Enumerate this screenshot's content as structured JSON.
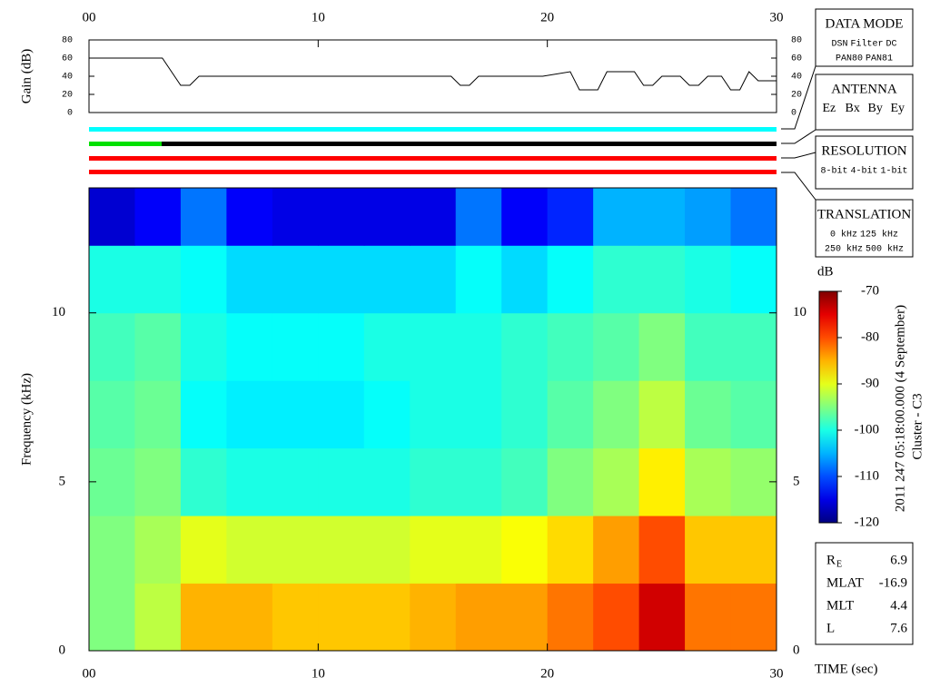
{
  "chart_data": [
    {
      "type": "line",
      "y_label": "Gain (dB)",
      "color": "#000000",
      "x": [
        0,
        3.2,
        3.6,
        4.0,
        4.4,
        4.8,
        15.8,
        16.2,
        16.6,
        17.0,
        19.8,
        21.0,
        21.4,
        22.2,
        22.6,
        23.8,
        24.2,
        24.6,
        25.0,
        25.8,
        26.2,
        26.6,
        27.0,
        27.6,
        28.0,
        28.4,
        28.8,
        29.2,
        30
      ],
      "values": [
        60,
        60,
        45,
        30,
        30,
        40,
        40,
        30,
        30,
        40,
        40,
        45,
        25,
        25,
        45,
        45,
        30,
        30,
        40,
        40,
        30,
        30,
        40,
        40,
        25,
        25,
        45,
        35,
        35
      ],
      "xlim": [
        0,
        30
      ],
      "xticks": [
        {
          "value": 0,
          "label": "00"
        },
        10,
        20,
        30
      ],
      "ylim": [
        0,
        80
      ],
      "yticks": [
        0,
        20,
        40,
        60,
        80
      ]
    },
    {
      "type": "heatmap",
      "x_label": "TIME (sec)",
      "y_label": "Frequency (kHz)",
      "x_bins": [
        0,
        2,
        4,
        6,
        8,
        10,
        12,
        14,
        16,
        18,
        20,
        22,
        24,
        26,
        28,
        30
      ],
      "y_bins": [
        0,
        2,
        4,
        6,
        8,
        10,
        12,
        13.7
      ],
      "values": [
        [
          -95,
          -92,
          -85,
          -85,
          -86,
          -86,
          -86,
          -85,
          -84,
          -84,
          -82,
          -80,
          -74,
          -82,
          -82
        ],
        [
          -95,
          -93,
          -90,
          -91,
          -91,
          -91,
          -91,
          -90,
          -90,
          -89,
          -87,
          -84,
          -80,
          -86,
          -86
        ],
        [
          -96,
          -95,
          -99,
          -100,
          -100,
          -100,
          -100,
          -99,
          -99,
          -98,
          -95,
          -93,
          -88,
          -93,
          -94
        ],
        [
          -97,
          -96,
          -101,
          -102,
          -102,
          -102,
          -101,
          -100,
          -100,
          -99,
          -97,
          -95,
          -92,
          -96,
          -97
        ],
        [
          -98,
          -97,
          -100,
          -101,
          -101,
          -101,
          -100,
          -100,
          -100,
          -99,
          -98,
          -97,
          -95,
          -98,
          -98
        ],
        [
          -100,
          -100,
          -101,
          -103,
          -103,
          -103,
          -103,
          -103,
          -101,
          -103,
          -101,
          -99,
          -99,
          -100,
          -101
        ],
        [
          -116,
          -114,
          -108,
          -114,
          -115,
          -115,
          -115,
          -115,
          -108,
          -114,
          -112,
          -105,
          -105,
          -106,
          -108
        ]
      ],
      "xlim": [
        0,
        30
      ],
      "xticks": [
        {
          "value": 0,
          "label": "00"
        },
        10,
        20,
        30
      ],
      "ylim": [
        0,
        13.7
      ],
      "yticks": [
        0,
        5,
        10
      ],
      "colorbar_label": "dB",
      "zlim": [
        -120,
        -70
      ],
      "zticks": [
        -70,
        -80,
        -90,
        -100,
        -110,
        -120
      ],
      "colormap": "jet"
    }
  ],
  "side_text": [
    "2011 247 05:18:00.000 (4 September)",
    "Cluster - C3"
  ],
  "panels": [
    {
      "title": "DATA MODE",
      "rows": [
        [
          {
            "text": "DSN",
            "color": "#e00000"
          },
          {
            "text": "Filter",
            "color": "#00c000"
          },
          {
            "text": "DC",
            "color": "#0000e0"
          }
        ],
        [
          {
            "text": "PAN80",
            "color": "#000000"
          },
          {
            "text": "PAN81",
            "color": "#00d0d0"
          }
        ]
      ]
    },
    {
      "title": "ANTENNA",
      "rows": [
        [
          {
            "text": "Ez",
            "color": "#e00000"
          },
          {
            "text": "Bx",
            "color": "#00c000"
          },
          {
            "text": "By",
            "color": "#0000e0"
          },
          {
            "text": "Ey",
            "color": "#000000"
          }
        ]
      ]
    },
    {
      "title": "RESOLUTION",
      "rows": [
        [
          {
            "text": "8-bit",
            "color": "#e00000"
          },
          {
            "text": "4-bit",
            "color": "#00c000"
          },
          {
            "text": "1-bit",
            "color": "#0000e0"
          }
        ]
      ]
    },
    {
      "title": "TRANSLATION",
      "rows": [
        [
          {
            "text": "0 kHz",
            "color": "#e00000"
          },
          {
            "text": "125 kHz",
            "color": "#00c000"
          }
        ],
        [
          {
            "text": "250 kHz",
            "color": "#0000e0"
          },
          {
            "text": "500 kHz",
            "color": "#000000"
          }
        ]
      ]
    }
  ],
  "info": [
    {
      "label": "R",
      "subscript": "E",
      "value": 6.9
    },
    {
      "label": "MLAT",
      "value": -16.9
    },
    {
      "label": "MLT",
      "value": 4.4
    },
    {
      "label": "L",
      "value": 7.6
    }
  ]
}
